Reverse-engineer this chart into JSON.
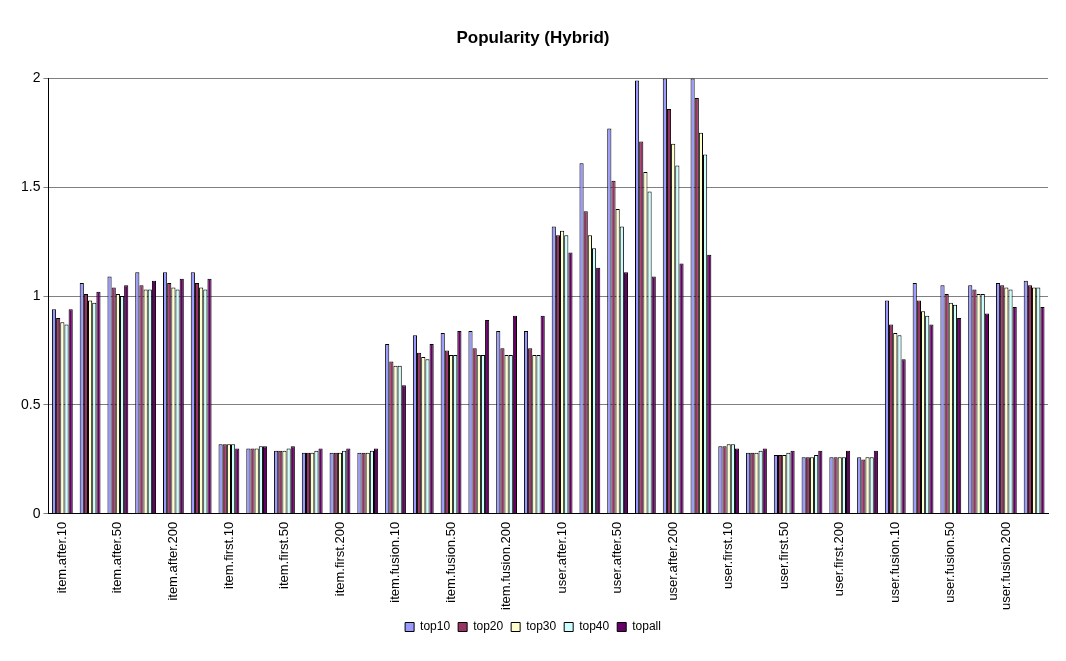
{
  "chart_data": {
    "type": "bar",
    "title": "Popularity (Hybrid)",
    "categories": [
      "item.after.10",
      null,
      "item.after.50",
      null,
      "item.after.200",
      null,
      "item.first.10",
      null,
      "item.first.50",
      null,
      "item.first.200",
      null,
      "item.fusion.10",
      null,
      "item.fusion.50",
      null,
      "item.fusion.200",
      null,
      "user.after.10",
      null,
      "user.after.50",
      null,
      "user.after.200",
      null,
      "user.first.10",
      null,
      "user.first.50",
      null,
      "user.first.200",
      null,
      "user.fusion.10",
      null,
      "user.fusion.50",
      null,
      "user.fusion.200",
      null
    ],
    "series": [
      {
        "name": "top10",
        "color": "#9999ff",
        "values": [
          0.94,
          1.06,
          1.09,
          1.11,
          1.11,
          1.11,
          0.32,
          0.3,
          0.29,
          0.28,
          0.28,
          0.28,
          0.78,
          0.82,
          0.83,
          0.84,
          0.84,
          0.84,
          1.32,
          1.61,
          1.77,
          1.99,
          2,
          2,
          0.31,
          0.28,
          0.27,
          0.26,
          0.26,
          0.26,
          0.98,
          1.06,
          1.05,
          1.05,
          1.06,
          1.07
        ]
      },
      {
        "name": "top20",
        "color": "#993366",
        "values": [
          0.9,
          1.01,
          1.04,
          1.05,
          1.06,
          1.06,
          0.32,
          0.3,
          0.29,
          0.28,
          0.28,
          0.28,
          0.7,
          0.74,
          0.75,
          0.76,
          0.76,
          0.76,
          1.28,
          1.39,
          1.53,
          1.71,
          1.86,
          1.91,
          0.31,
          0.28,
          0.27,
          0.26,
          0.26,
          0.25,
          0.87,
          0.98,
          1.01,
          1.03,
          1.05,
          1.05
        ]
      },
      {
        "name": "top30",
        "color": "#ffffcc",
        "values": [
          0.88,
          0.98,
          1.01,
          1.03,
          1.04,
          1.04,
          0.32,
          0.3,
          0.29,
          0.28,
          0.28,
          0.28,
          0.68,
          0.72,
          0.73,
          0.73,
          0.73,
          0.73,
          1.3,
          1.28,
          1.4,
          1.57,
          1.7,
          1.75,
          0.32,
          0.28,
          0.27,
          0.26,
          0.26,
          0.26,
          0.83,
          0.93,
          0.97,
          1.01,
          1.04,
          1.04
        ]
      },
      {
        "name": "top40",
        "color": "#ccffff",
        "values": [
          0.87,
          0.97,
          1.0,
          1.03,
          1.03,
          1.03,
          0.32,
          0.31,
          0.3,
          0.29,
          0.29,
          0.29,
          0.68,
          0.71,
          0.73,
          0.73,
          0.73,
          0.73,
          1.28,
          1.22,
          1.32,
          1.48,
          1.6,
          1.65,
          0.32,
          0.29,
          0.28,
          0.27,
          0.26,
          0.26,
          0.82,
          0.91,
          0.96,
          1.01,
          1.03,
          1.04
        ]
      },
      {
        "name": "topall",
        "color": "#660066",
        "values": [
          0.94,
          1.02,
          1.05,
          1.07,
          1.08,
          1.08,
          0.3,
          0.31,
          0.31,
          0.3,
          0.3,
          0.3,
          0.59,
          0.78,
          0.84,
          0.89,
          0.91,
          0.91,
          1.2,
          1.13,
          1.11,
          1.09,
          1.15,
          1.19,
          0.3,
          0.3,
          0.29,
          0.29,
          0.29,
          0.29,
          0.71,
          0.87,
          0.9,
          0.92,
          0.95,
          0.95
        ]
      }
    ],
    "ylim": [
      0,
      2
    ],
    "yticks": [
      0,
      0.5,
      1,
      1.5,
      2
    ],
    "grid": "y",
    "legend": "bottom"
  }
}
